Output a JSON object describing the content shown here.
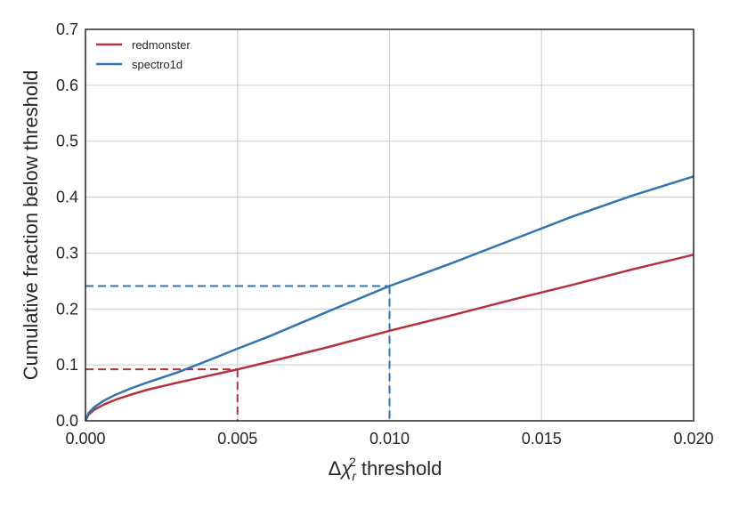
{
  "chart_data": {
    "type": "line",
    "title": "",
    "xlabel": "threshold",
    "xlabel_math": {
      "delta": "Δ",
      "chi": "χ",
      "sub": "r",
      "sup": "2"
    },
    "ylabel": "Cumulative fraction below threshold",
    "xlim": [
      0.0,
      0.02
    ],
    "ylim": [
      0.0,
      0.7
    ],
    "xticks": [
      0.0,
      0.005,
      0.01,
      0.015,
      0.02
    ],
    "xtick_labels": [
      "0.000",
      "0.005",
      "0.010",
      "0.015",
      "0.020"
    ],
    "yticks": [
      0.0,
      0.1,
      0.2,
      0.3,
      0.4,
      0.5,
      0.6,
      0.7
    ],
    "ytick_labels": [
      "0.0",
      "0.1",
      "0.2",
      "0.3",
      "0.4",
      "0.5",
      "0.6",
      "0.7"
    ],
    "grid": true,
    "legend_position": "top-left",
    "series": [
      {
        "name": "redmonster",
        "color": "#b5303a",
        "x": [
          0.0,
          0.0001,
          0.0003,
          0.0006,
          0.001,
          0.0015,
          0.002,
          0.003,
          0.004,
          0.005,
          0.006,
          0.008,
          0.01,
          0.012,
          0.014,
          0.016,
          0.018,
          0.02
        ],
        "y": [
          0.0,
          0.011,
          0.02,
          0.029,
          0.038,
          0.047,
          0.055,
          0.068,
          0.08,
          0.092,
          0.105,
          0.132,
          0.161,
          0.188,
          0.216,
          0.243,
          0.271,
          0.297
        ]
      },
      {
        "name": "spectro1d",
        "color": "#3174b1",
        "x": [
          0.0,
          0.0001,
          0.0003,
          0.0006,
          0.001,
          0.0015,
          0.002,
          0.003,
          0.004,
          0.005,
          0.006,
          0.008,
          0.01,
          0.012,
          0.014,
          0.016,
          0.018,
          0.02
        ],
        "y": [
          0.0,
          0.014,
          0.025,
          0.036,
          0.047,
          0.058,
          0.068,
          0.086,
          0.107,
          0.129,
          0.15,
          0.196,
          0.241,
          0.281,
          0.323,
          0.365,
          0.403,
          0.437
        ]
      }
    ],
    "reference_lines": [
      {
        "series": "redmonster",
        "x": 0.005,
        "y": 0.092,
        "color": "#b5303a"
      },
      {
        "series": "spectro1d",
        "x": 0.01,
        "y": 0.241,
        "color": "#3174b1"
      }
    ]
  }
}
